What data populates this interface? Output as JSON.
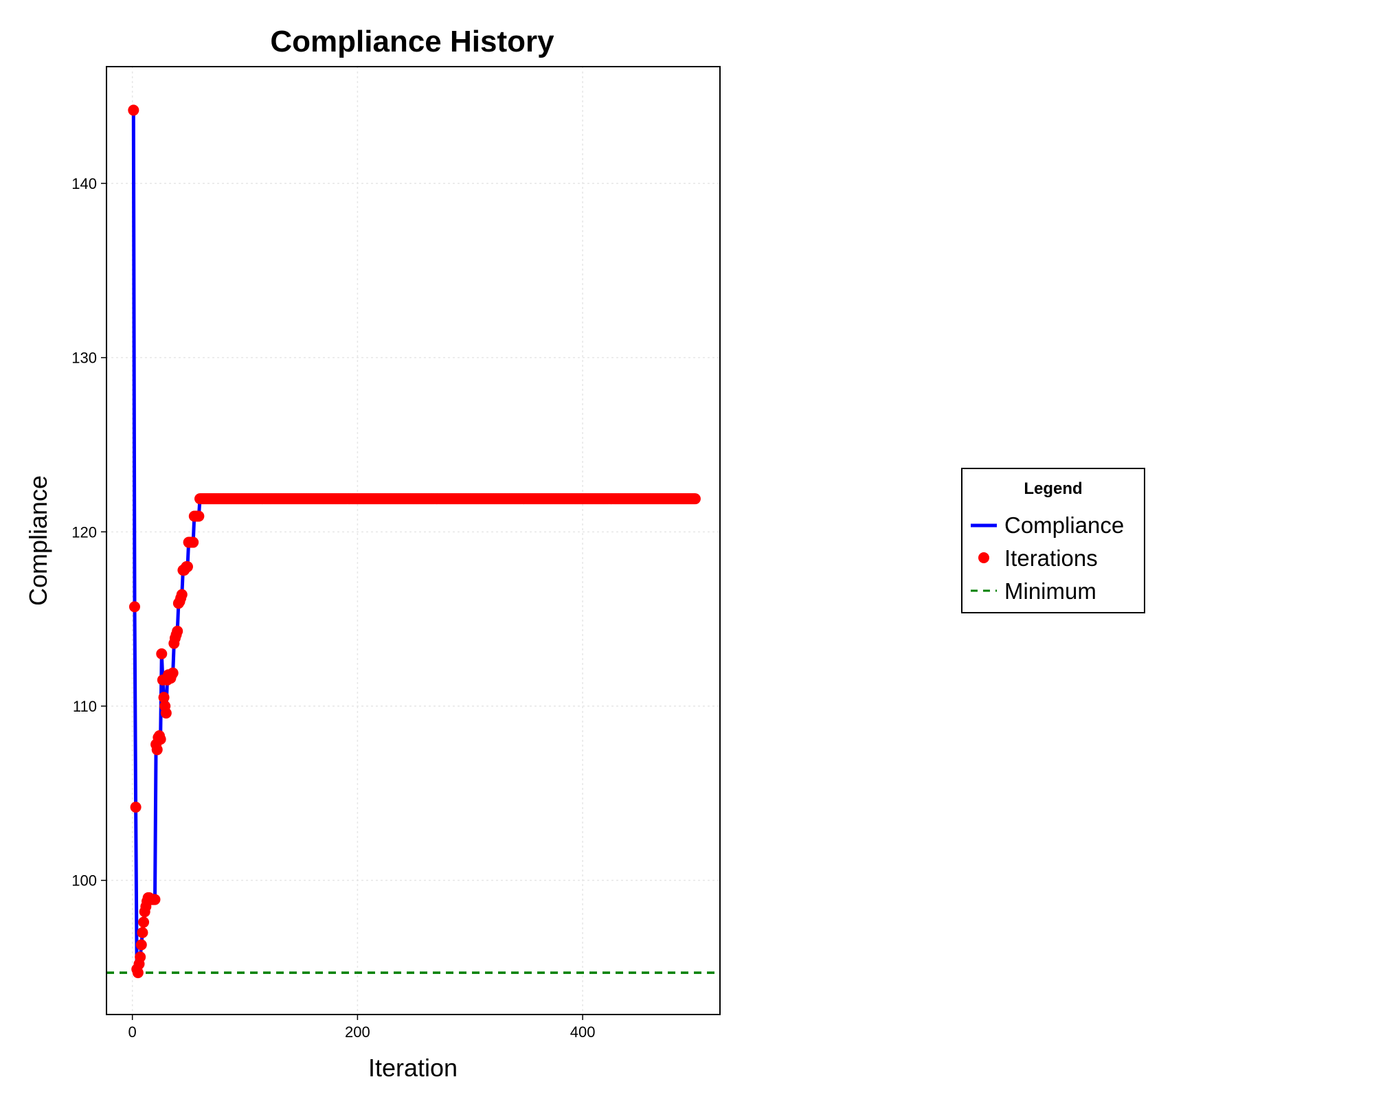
{
  "chart_data": {
    "type": "line",
    "title": "Compliance History",
    "xlabel": "Iteration",
    "ylabel": "Compliance",
    "xlim": [
      -23,
      522
    ],
    "ylim": [
      92.3,
      146.7
    ],
    "xticks": [
      0,
      200,
      400
    ],
    "yticks": [
      100,
      110,
      120,
      130,
      140
    ],
    "grid": true,
    "legend": {
      "title": "Legend",
      "placement": "right",
      "entries": [
        "Compliance",
        "Iterations",
        "Minimum"
      ]
    },
    "minimum_line": {
      "name": "Minimum",
      "y": 94.7,
      "color": "#008000",
      "style": "dashed"
    },
    "series": [
      {
        "name": "Compliance",
        "color": "#0000ff",
        "marker_name": "Iterations",
        "marker_color": "#ff0000",
        "x": [
          1,
          2,
          3,
          4,
          5,
          6,
          7,
          8,
          9,
          10,
          11,
          12,
          13,
          14,
          15,
          16,
          17,
          18,
          19,
          20,
          21,
          22,
          23,
          24,
          25,
          26,
          27,
          28,
          29,
          30,
          31,
          32,
          33,
          34,
          35,
          36,
          37,
          38,
          39,
          40,
          41,
          42,
          43,
          44,
          45,
          46,
          47,
          48,
          49,
          50,
          51,
          52,
          53,
          54,
          55,
          56,
          57,
          58,
          59,
          60,
          61,
          62,
          500
        ],
        "y": [
          144.2,
          115.7,
          104.2,
          94.9,
          94.7,
          95.2,
          95.6,
          96.3,
          97.0,
          97.6,
          98.2,
          98.5,
          98.8,
          99.0,
          99.0,
          98.9,
          98.9,
          98.9,
          98.9,
          98.9,
          107.8,
          107.5,
          108.2,
          108.3,
          108.1,
          113.0,
          111.5,
          110.5,
          110.0,
          109.6,
          111.5,
          111.8,
          111.7,
          111.6,
          111.8,
          111.9,
          113.6,
          113.9,
          114.1,
          114.3,
          115.9,
          116.0,
          116.2,
          116.4,
          117.8,
          117.8,
          117.9,
          118.0,
          118.0,
          119.4,
          119.4,
          119.4,
          119.4,
          119.4,
          120.9,
          120.9,
          120.9,
          120.9,
          120.9,
          121.9,
          121.9,
          121.9,
          121.9
        ]
      }
    ]
  }
}
